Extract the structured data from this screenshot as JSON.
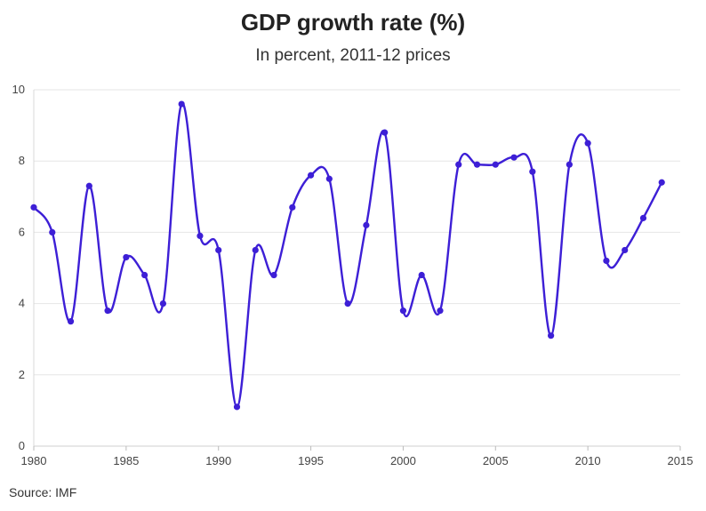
{
  "chart_data": {
    "type": "line",
    "title": "GDP growth rate (%)",
    "subtitle": "In percent, 2011-12 prices",
    "source": "Source: IMF",
    "xlabel": "",
    "ylabel": "",
    "xlim": [
      1980,
      2015
    ],
    "ylim": [
      0,
      10
    ],
    "x_ticks": [
      1980,
      1985,
      1990,
      1995,
      2000,
      2005,
      2010,
      2015
    ],
    "y_ticks": [
      0,
      2,
      4,
      6,
      8,
      10
    ],
    "grid": "horizontal",
    "legend": "none",
    "color": "#3d1fd6",
    "series": [
      {
        "x": [
          1980,
          1981,
          1982,
          1983,
          1984,
          1985,
          1986,
          1987,
          1988,
          1989,
          1990,
          1991,
          1992,
          1993,
          1994,
          1995,
          1996,
          1997,
          1998,
          1999,
          2000,
          2001,
          2002,
          2003,
          2004,
          2005,
          2006,
          2007,
          2008,
          2009,
          2010,
          2011,
          2012,
          2013,
          2014
        ],
        "values": [
          6.7,
          6.0,
          3.5,
          7.3,
          3.8,
          5.3,
          4.8,
          4.0,
          9.6,
          5.9,
          5.5,
          1.1,
          5.5,
          4.8,
          6.7,
          7.6,
          7.5,
          4.0,
          6.2,
          8.8,
          3.8,
          4.8,
          3.8,
          7.9,
          7.9,
          7.9,
          8.1,
          7.7,
          3.1,
          7.9,
          8.5,
          5.2,
          5.5,
          6.4,
          7.4
        ]
      }
    ]
  }
}
